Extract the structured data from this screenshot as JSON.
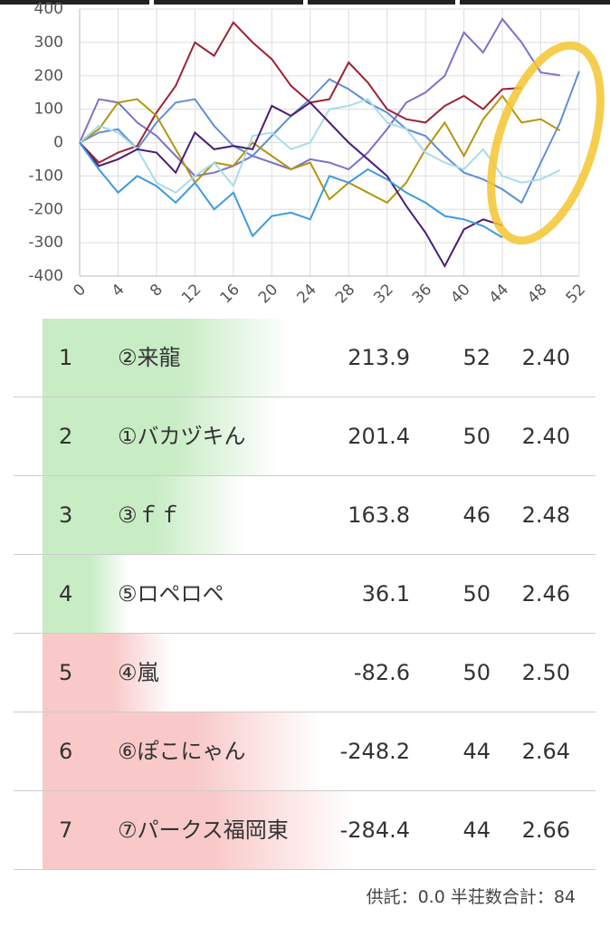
{
  "chart_data": {
    "type": "line",
    "x": [
      0,
      2,
      4,
      6,
      8,
      10,
      12,
      14,
      16,
      18,
      20,
      22,
      24,
      26,
      28,
      30,
      32,
      34,
      36,
      38,
      40,
      42,
      44,
      46,
      48,
      50,
      52
    ],
    "xlim": [
      0,
      52
    ],
    "xticks": [
      0,
      4,
      8,
      12,
      16,
      20,
      24,
      28,
      32,
      36,
      40,
      44,
      48,
      52
    ],
    "ylim": [
      -400,
      400
    ],
    "yticks": [
      -400,
      -300,
      -200,
      -100,
      0,
      100,
      200,
      300,
      400
    ],
    "grid": true,
    "series": [
      {
        "color": "#5f8fd8",
        "values": [
          0,
          30,
          40,
          -20,
          60,
          120,
          130,
          50,
          -10,
          -40,
          20,
          80,
          130,
          190,
          160,
          120,
          90,
          40,
          20,
          -40,
          -90,
          -110,
          -140,
          -180,
          -60,
          60,
          213.9
        ]
      },
      {
        "color": "#7b73c9",
        "values": [
          0,
          130,
          120,
          60,
          20,
          -40,
          -100,
          -90,
          -70,
          -40,
          -60,
          -80,
          -50,
          -60,
          -80,
          -30,
          40,
          120,
          150,
          200,
          330,
          270,
          370,
          300,
          210,
          201.4,
          null
        ]
      },
      {
        "color": "#9b2335",
        "values": [
          0,
          -60,
          -30,
          -10,
          90,
          170,
          300,
          260,
          360,
          300,
          250,
          170,
          120,
          130,
          240,
          180,
          100,
          70,
          60,
          110,
          140,
          100,
          160,
          163.8,
          null,
          null,
          null
        ]
      },
      {
        "color": "#b4960f",
        "values": [
          0,
          40,
          120,
          130,
          80,
          -20,
          -120,
          -60,
          -70,
          0,
          -40,
          -80,
          -60,
          -170,
          -120,
          -150,
          -180,
          -120,
          -20,
          60,
          -40,
          70,
          140,
          60,
          70,
          36.1,
          null
        ]
      },
      {
        "color": "#a8dcea",
        "values": [
          0,
          50,
          30,
          -20,
          -120,
          -150,
          -100,
          -60,
          -130,
          20,
          30,
          -20,
          0,
          100,
          110,
          130,
          60,
          40,
          -30,
          -60,
          -80,
          -20,
          -100,
          -120,
          -110,
          -82.6,
          null
        ]
      },
      {
        "color": "#4a1c78",
        "values": [
          0,
          -70,
          -50,
          -20,
          -30,
          -90,
          30,
          -20,
          -10,
          -20,
          110,
          80,
          120,
          60,
          0,
          -50,
          -100,
          -190,
          -270,
          -370,
          -260,
          -230,
          -248.2,
          null,
          null,
          null,
          null
        ]
      },
      {
        "color": "#3d9be0",
        "values": [
          0,
          -80,
          -150,
          -100,
          -130,
          -180,
          -120,
          -200,
          -150,
          -280,
          -220,
          -210,
          -230,
          -100,
          -120,
          -80,
          -110,
          -150,
          -180,
          -220,
          -230,
          -250,
          -284.4,
          null,
          null,
          null,
          null
        ]
      }
    ]
  },
  "table": {
    "rows": [
      [
        "1",
        "②来龍",
        213.9,
        52,
        "2.40"
      ],
      [
        "2",
        "①バカヅキん",
        201.4,
        50,
        "2.40"
      ],
      [
        "3",
        "③ｆｆ",
        163.8,
        46,
        "2.48"
      ],
      [
        "4",
        "⑤ロペロペ",
        36.1,
        50,
        "2.46"
      ],
      [
        "5",
        "④嵐",
        -82.6,
        50,
        "2.50"
      ],
      [
        "6",
        "⑥ぽこにゃん",
        -248.2,
        44,
        "2.64"
      ],
      [
        "7",
        "⑦パークス福岡東",
        -284.4,
        44,
        "2.66"
      ]
    ]
  },
  "footer": "供託：0.0 半荘数合計：84"
}
